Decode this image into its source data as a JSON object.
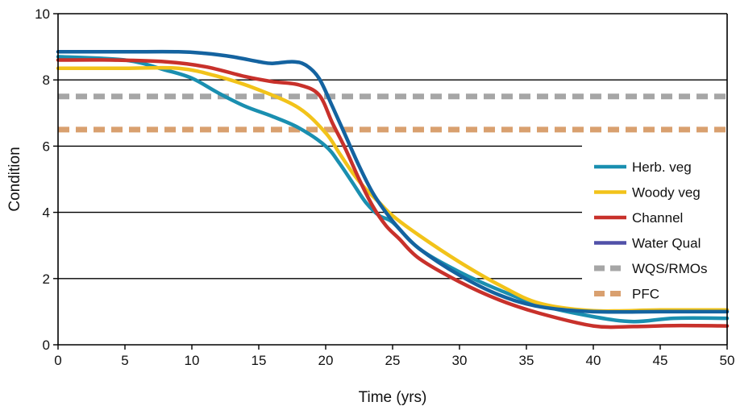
{
  "chart_data": {
    "type": "line",
    "title": "",
    "xlabel": "Time (yrs)",
    "ylabel": "Condition",
    "xlim": [
      0,
      50
    ],
    "ylim": [
      0,
      10
    ],
    "xticks": [
      0,
      5,
      10,
      15,
      20,
      25,
      30,
      35,
      40,
      45,
      50
    ],
    "yticks": [
      0,
      2,
      4,
      6,
      8,
      10
    ],
    "grid": "horizontal",
    "legend_position": "right",
    "series": [
      {
        "name": "Herb. veg",
        "color": "#1a8fb0",
        "style": "solid",
        "x": [
          0,
          5,
          8,
          10,
          12,
          14,
          16,
          18,
          20,
          21,
          22,
          23,
          24,
          25,
          27,
          30,
          33,
          36,
          40,
          43,
          46,
          50
        ],
        "y": [
          8.7,
          8.6,
          8.3,
          8.05,
          7.6,
          7.2,
          6.9,
          6.55,
          6.0,
          5.5,
          4.9,
          4.3,
          3.9,
          3.7,
          2.9,
          2.2,
          1.65,
          1.2,
          0.85,
          0.7,
          0.8,
          0.8
        ]
      },
      {
        "name": "Woody veg",
        "color": "#f2c31a",
        "style": "solid",
        "x": [
          0,
          5,
          9,
          12,
          15,
          18,
          20,
          21,
          22,
          23,
          24,
          25,
          27,
          30,
          33,
          36,
          40,
          45,
          50
        ],
        "y": [
          8.35,
          8.35,
          8.35,
          8.1,
          7.7,
          7.15,
          6.4,
          5.8,
          5.2,
          4.7,
          4.3,
          3.9,
          3.3,
          2.5,
          1.8,
          1.25,
          1.03,
          1.05,
          1.05
        ]
      },
      {
        "name": "Channel",
        "color": "#c8312b",
        "style": "solid",
        "x": [
          0,
          4,
          8,
          11,
          14,
          16,
          18,
          19.5,
          20.5,
          21.5,
          22.5,
          23.5,
          24.5,
          25.5,
          27,
          30,
          33,
          36,
          40,
          43,
          46,
          50
        ],
        "y": [
          8.6,
          8.6,
          8.55,
          8.4,
          8.1,
          7.95,
          7.85,
          7.55,
          6.7,
          5.9,
          5.0,
          4.2,
          3.6,
          3.2,
          2.6,
          1.9,
          1.35,
          0.95,
          0.57,
          0.55,
          0.58,
          0.57
        ]
      },
      {
        "name": "Water Qual",
        "color": "#5050a8",
        "style": "solid",
        "x": [],
        "y": []
      },
      {
        "name": "",
        "color": "#1463a0",
        "style": "solid",
        "x": [
          0,
          5,
          9,
          11,
          13,
          15,
          16,
          17.5,
          18.5,
          19.5,
          20.5,
          21.5,
          22.5,
          23.5,
          24.5,
          25.5,
          27,
          30,
          33,
          36,
          40,
          45,
          50
        ],
        "y": [
          8.85,
          8.85,
          8.85,
          8.8,
          8.7,
          8.55,
          8.5,
          8.55,
          8.45,
          8.05,
          7.2,
          6.3,
          5.4,
          4.6,
          4.0,
          3.5,
          2.9,
          2.1,
          1.5,
          1.15,
          1.0,
          1.0,
          1.0
        ]
      },
      {
        "name": "WQS/RMOs",
        "color": "#a6a6a6",
        "style": "dashed",
        "x": [
          0,
          50
        ],
        "y": [
          7.5,
          7.5
        ]
      },
      {
        "name": "PFC",
        "color": "#d9a06f",
        "style": "dashed",
        "x": [
          0,
          50
        ],
        "y": [
          6.5,
          6.5
        ]
      }
    ]
  }
}
